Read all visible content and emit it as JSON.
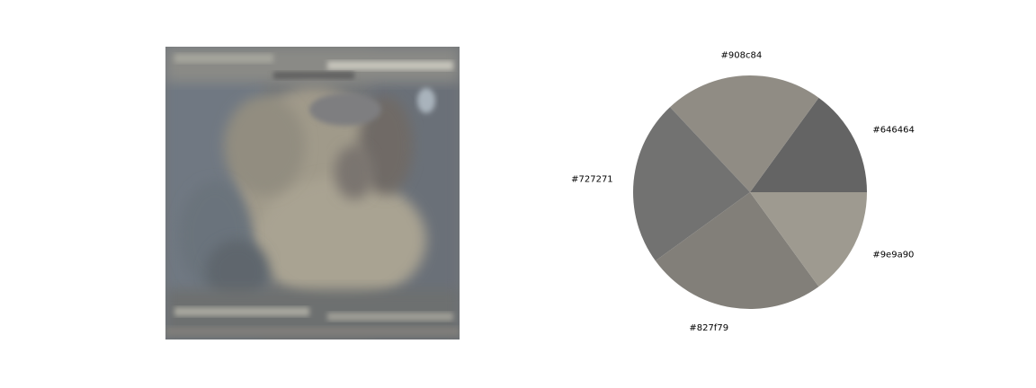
{
  "image_panel": {
    "icon": "blurred-photo-thumbnail",
    "palette": [
      "#646464",
      "#908c84",
      "#727271",
      "#827f79",
      "#9e9a90"
    ]
  },
  "chart_data": {
    "type": "pie",
    "title": "",
    "labels": [
      "#646464",
      "#908c84",
      "#727271",
      "#827f79",
      "#9e9a90"
    ],
    "colors": [
      "#646464",
      "#908c84",
      "#727271",
      "#827f79",
      "#9e9a90"
    ],
    "values": [
      15,
      22,
      23,
      25,
      15
    ],
    "start_angle_deg": 0,
    "direction": "counterclockwise"
  }
}
